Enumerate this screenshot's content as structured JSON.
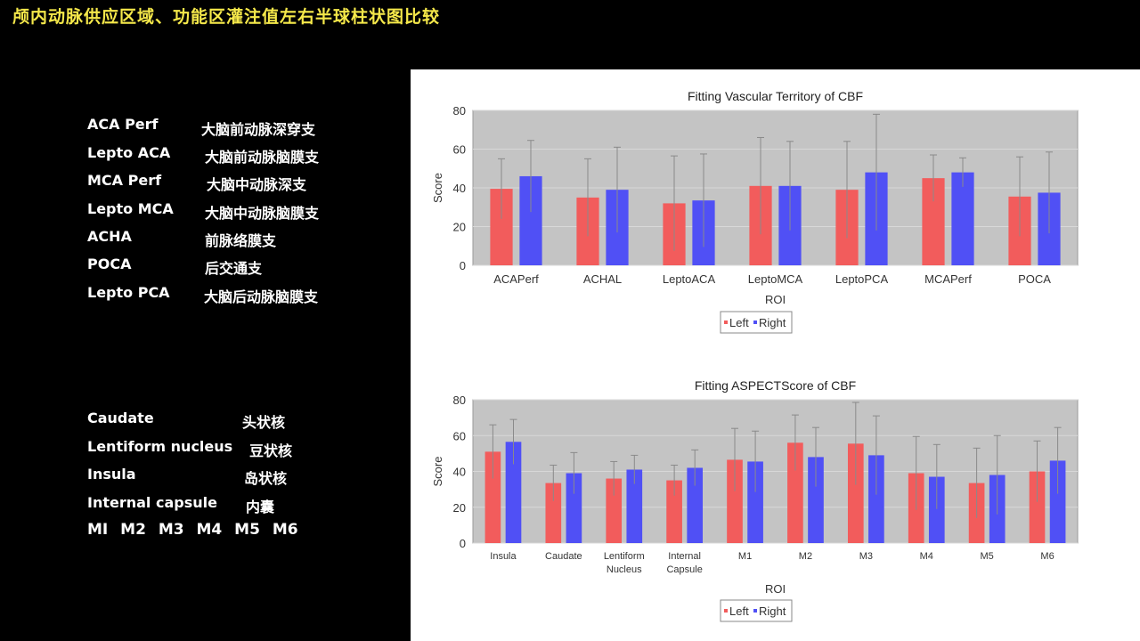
{
  "slide_title": "颅内动脉供应区域、功能区灌注值左右半球柱状图比较",
  "territory_legend": [
    {
      "term": "ACA Perf",
      "def": "大脑前动脉深穿支"
    },
    {
      "term": "Lepto ACA",
      "def": "大脑前动脉脑膜支"
    },
    {
      "term": "MCA Perf",
      "def": "大脑中动脉深支"
    },
    {
      "term": "Lepto MCA",
      "def": "大脑中动脉脑膜支"
    },
    {
      "term": "ACHA",
      "def": "前脉络膜支"
    },
    {
      "term": "POCA",
      "def": "后交通支"
    },
    {
      "term": "Lepto PCA",
      "def": "大脑后动脉脑膜支"
    }
  ],
  "region_legend": [
    {
      "term": "Caudate",
      "def": "头状核"
    },
    {
      "term": "Lentiform nucleus",
      "def": "豆状核"
    },
    {
      "term": "Insula",
      "def": "岛状核"
    },
    {
      "term": "Internal capsule",
      "def": "内囊"
    }
  ],
  "m_segments": "MI   M2   M3   M4   M5   M6",
  "colors": {
    "left": "#f25c5c",
    "right": "#5050f5",
    "plot_bg": "#c4c4c4",
    "title": "#f5e84a"
  },
  "chart_data": [
    {
      "type": "bar",
      "title": "Fitting Vascular Territory of CBF",
      "xlabel": "ROI",
      "ylabel": "Score",
      "ylim": [
        0,
        80
      ],
      "yticks": [
        0,
        20,
        40,
        60,
        80
      ],
      "categories": [
        "ACAPerf",
        "ACHAL",
        "LeptoACA",
        "LeptoMCA",
        "LeptoPCA",
        "MCAPerf",
        "POCA"
      ],
      "series": [
        {
          "name": "Left",
          "values": [
            39.5,
            35,
            32,
            41,
            39,
            45,
            35.5
          ],
          "errors": [
            15.5,
            20,
            24.5,
            25,
            25,
            12,
            20.5
          ]
        },
        {
          "name": "Right",
          "values": [
            46,
            39,
            33.5,
            41,
            48,
            48,
            37.5
          ],
          "errors": [
            18.5,
            22,
            24,
            23,
            30,
            7.5,
            21
          ]
        }
      ],
      "grid": true,
      "legend": "bottom-center"
    },
    {
      "type": "bar",
      "title": "Fitting ASPECTScore of CBF",
      "xlabel": "ROI",
      "ylabel": "Score",
      "ylim": [
        0,
        80
      ],
      "yticks": [
        0,
        20,
        40,
        60,
        80
      ],
      "categories": [
        "Insula",
        "Caudate",
        "Lentiform Nucleus",
        "Internal Capsule",
        "M1",
        "M2",
        "M3",
        "M4",
        "M5",
        "M6"
      ],
      "series": [
        {
          "name": "Left",
          "values": [
            51,
            33.5,
            36,
            35,
            46.5,
            56,
            55.5,
            39,
            33.5,
            40
          ],
          "errors": [
            15,
            10,
            9.5,
            8.5,
            17.5,
            15.5,
            23,
            20.5,
            19.5,
            17
          ]
        },
        {
          "name": "Right",
          "values": [
            56.5,
            39,
            41,
            42,
            45.5,
            48,
            49,
            37,
            38,
            46
          ],
          "errors": [
            12.5,
            11.5,
            8,
            10,
            17,
            16.5,
            22,
            18,
            22,
            18.5
          ]
        }
      ],
      "grid": true,
      "legend": "bottom-center"
    }
  ]
}
